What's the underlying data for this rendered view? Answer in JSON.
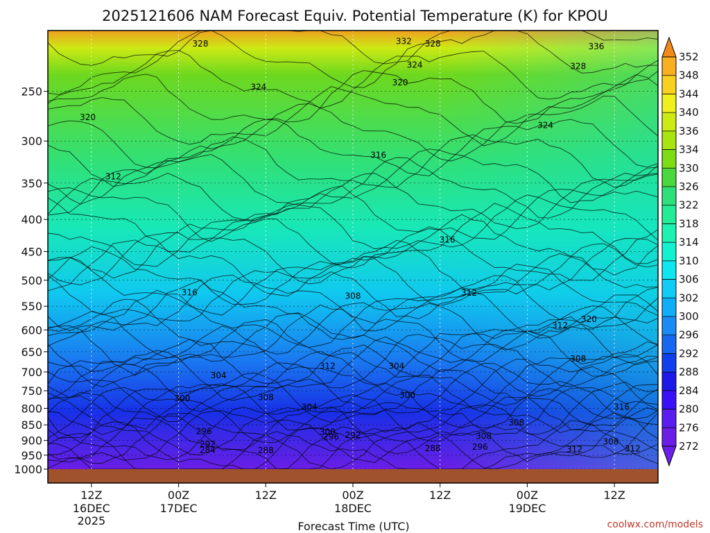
{
  "chart_data": {
    "type": "heatmap",
    "title": "2025121606 NAM Forecast Equiv. Potential Temperature (K) for KPOU",
    "xlabel": "Forecast Time (UTC)",
    "ylabel": "",
    "credit": "coolwx.com/models",
    "y_axis": {
      "ticks": [
        250,
        300,
        350,
        400,
        450,
        500,
        550,
        600,
        650,
        700,
        750,
        800,
        850,
        900,
        950,
        1000
      ],
      "range": [
        200,
        1000
      ],
      "scale": "log-pressure"
    },
    "x_axis": {
      "range_hours": [
        0,
        84
      ],
      "ticks": [
        {
          "hour": 6,
          "label": "12Z",
          "date": "16DEC",
          "year": "2025"
        },
        {
          "hour": 18,
          "label": "00Z",
          "date": "17DEC",
          "year": ""
        },
        {
          "hour": 30,
          "label": "12Z",
          "date": "",
          "year": ""
        },
        {
          "hour": 42,
          "label": "00Z",
          "date": "18DEC",
          "year": ""
        },
        {
          "hour": 54,
          "label": "12Z",
          "date": "",
          "year": ""
        },
        {
          "hour": 66,
          "label": "00Z",
          "date": "19DEC",
          "year": ""
        },
        {
          "hour": 78,
          "label": "12Z",
          "date": "",
          "year": ""
        }
      ]
    },
    "colorbar": {
      "units": "K",
      "levels": [
        272,
        276,
        280,
        284,
        288,
        292,
        296,
        300,
        302,
        306,
        310,
        314,
        318,
        322,
        326,
        330,
        334,
        336,
        340,
        344,
        348,
        352
      ],
      "colors": [
        "#6a1ee6",
        "#5a1ff0",
        "#3a10f8",
        "#1e18e8",
        "#1040ee",
        "#1768f0",
        "#1a8af5",
        "#10aef8",
        "#10ccf6",
        "#0fe6f0",
        "#12f2d0",
        "#1ef2b0",
        "#22ec96",
        "#2ee07a",
        "#4ad83e",
        "#7cdc16",
        "#a8e410",
        "#ccea14",
        "#f0f01c",
        "#f8d020",
        "#f8b020",
        "#f08a1a"
      ]
    },
    "grid": true,
    "ground_color": "#a0522d",
    "contour_labels": [
      {
        "value": "328",
        "hour": 21,
        "p": 210
      },
      {
        "value": "332",
        "hour": 49,
        "p": 208
      },
      {
        "value": "328",
        "hour": 53,
        "p": 210
      },
      {
        "value": "336",
        "hour": 75.5,
        "p": 212
      },
      {
        "value": "328",
        "hour": 73,
        "p": 228
      },
      {
        "value": "324",
        "hour": 50.5,
        "p": 227
      },
      {
        "value": "324",
        "hour": 29,
        "p": 246
      },
      {
        "value": "320",
        "hour": 48.5,
        "p": 242
      },
      {
        "value": "320",
        "hour": 5.5,
        "p": 275
      },
      {
        "value": "324",
        "hour": 68.5,
        "p": 283
      },
      {
        "value": "316",
        "hour": 45.5,
        "p": 316
      },
      {
        "value": "312",
        "hour": 9,
        "p": 342
      },
      {
        "value": "316",
        "hour": 55,
        "p": 431
      },
      {
        "value": "316",
        "hour": 19.5,
        "p": 523
      },
      {
        "value": "308",
        "hour": 42,
        "p": 530
      },
      {
        "value": "312",
        "hour": 58,
        "p": 524
      },
      {
        "value": "312",
        "hour": 70.5,
        "p": 590
      },
      {
        "value": "320",
        "hour": 74.5,
        "p": 577
      },
      {
        "value": "308",
        "hour": 73,
        "p": 667
      },
      {
        "value": "312",
        "hour": 38.5,
        "p": 685
      },
      {
        "value": "304",
        "hour": 48,
        "p": 685
      },
      {
        "value": "304",
        "hour": 23.5,
        "p": 709
      },
      {
        "value": "300",
        "hour": 49.5,
        "p": 762
      },
      {
        "value": "300",
        "hour": 18.5,
        "p": 771
      },
      {
        "value": "308",
        "hour": 30,
        "p": 768
      },
      {
        "value": "304",
        "hour": 36,
        "p": 796
      },
      {
        "value": "316",
        "hour": 79,
        "p": 796
      },
      {
        "value": "308",
        "hour": 64.5,
        "p": 843
      },
      {
        "value": "296",
        "hour": 21.5,
        "p": 870
      },
      {
        "value": "300",
        "hour": 38.5,
        "p": 873
      },
      {
        "value": "292",
        "hour": 42,
        "p": 883
      },
      {
        "value": "296",
        "hour": 39,
        "p": 888
      },
      {
        "value": "308",
        "hour": 60,
        "p": 886
      },
      {
        "value": "308",
        "hour": 77.5,
        "p": 904
      },
      {
        "value": "292",
        "hour": 22,
        "p": 912
      },
      {
        "value": "296",
        "hour": 59.5,
        "p": 922
      },
      {
        "value": "288",
        "hour": 53,
        "p": 927
      },
      {
        "value": "284",
        "hour": 22,
        "p": 932
      },
      {
        "value": "288",
        "hour": 30,
        "p": 933
      },
      {
        "value": "312",
        "hour": 72.5,
        "p": 930
      },
      {
        "value": "312",
        "hour": 80.5,
        "p": 928
      }
    ]
  }
}
